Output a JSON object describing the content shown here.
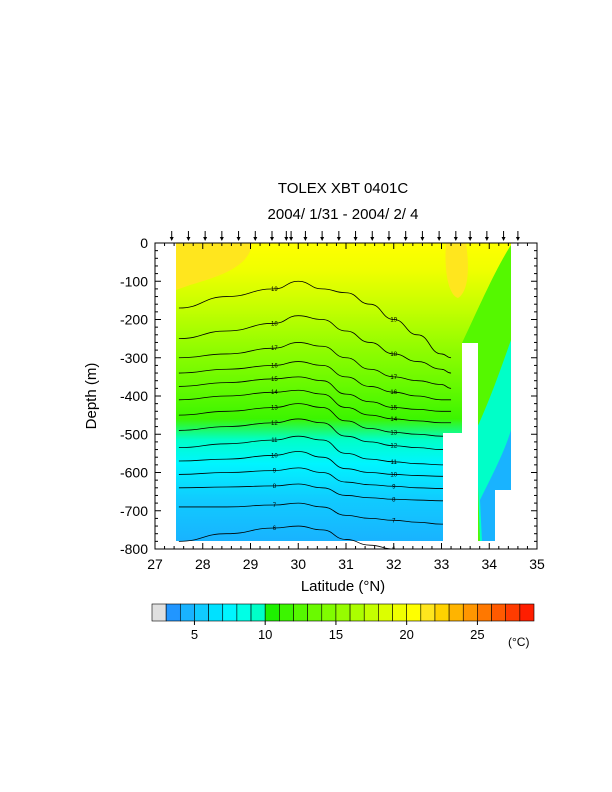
{
  "chart_data": {
    "type": "heatmap",
    "title": "TOLEX XBT 0401C",
    "subtitle": "2004/ 1/31 - 2004/ 2/ 4",
    "xlabel": "Latitude (°N)",
    "ylabel": "Depth (m)",
    "xlim": [
      27,
      35
    ],
    "ylim": [
      -800,
      0
    ],
    "x_ticks": [
      27,
      28,
      29,
      30,
      31,
      32,
      33,
      34,
      35
    ],
    "x_tick_labels": [
      "27",
      "28",
      "29",
      "30",
      "31",
      "32",
      "33",
      "34",
      "35"
    ],
    "y_ticks": [
      0,
      -100,
      -200,
      -300,
      -400,
      -500,
      -600,
      -700,
      -800
    ],
    "y_tick_labels": [
      "0",
      "-100",
      "-200",
      "-300",
      "-400",
      "-500",
      "-600",
      "-700",
      "-800"
    ],
    "station_latitudes": [
      27.35,
      27.7,
      28.05,
      28.4,
      28.75,
      29.1,
      29.45,
      29.75,
      29.85,
      30.15,
      30.5,
      30.85,
      31.2,
      31.55,
      31.9,
      32.25,
      32.6,
      32.95,
      33.3,
      33.6,
      33.95,
      34.3,
      34.6
    ],
    "contour_levels": [
      6,
      7,
      8,
      9,
      10,
      11,
      12,
      13,
      14,
      15,
      16,
      17,
      18,
      19
    ],
    "isotherm_depths": {
      "lat": [
        27.5,
        28.5,
        29.5,
        30.0,
        30.5,
        31.0,
        31.5,
        32.0,
        32.5,
        33.0,
        33.2
      ],
      "t19": [
        -170,
        -140,
        -120,
        -100,
        -120,
        -130,
        -160,
        -200,
        -240,
        -290,
        -300
      ],
      "t18": [
        -250,
        -230,
        -210,
        -190,
        -200,
        -230,
        -260,
        -290,
        -310,
        -330,
        -340
      ],
      "t17": [
        -300,
        -290,
        -275,
        -260,
        -270,
        -300,
        -330,
        -350,
        -360,
        -370,
        -380
      ],
      "t16": [
        -340,
        -330,
        -320,
        -310,
        -320,
        -350,
        -375,
        -390,
        -400,
        -410,
        -410
      ],
      "t15": [
        -375,
        -365,
        -355,
        -350,
        -360,
        -395,
        -415,
        -430,
        -435,
        -440,
        -440
      ],
      "t14": [
        -410,
        -400,
        -390,
        -385,
        -395,
        -430,
        -450,
        -460,
        -465,
        -470,
        -470
      ],
      "t13": [
        -450,
        -440,
        -430,
        -420,
        -430,
        -465,
        -485,
        -495,
        -500,
        -505,
        -505
      ],
      "t12": [
        -490,
        -480,
        -470,
        -460,
        -470,
        -505,
        -520,
        -530,
        -535,
        -540,
        -540
      ],
      "t11": [
        -535,
        -525,
        -515,
        -505,
        -515,
        -550,
        -565,
        -572,
        -577,
        -580,
        -580
      ],
      "t10": [
        -570,
        -565,
        -555,
        -545,
        -560,
        -590,
        -600,
        -605,
        -608,
        -610,
        -610
      ],
      "t9": [
        -605,
        -600,
        -595,
        -588,
        -600,
        -625,
        -632,
        -636,
        -640,
        -642,
        -642
      ],
      "t8": [
        -640,
        -638,
        -635,
        -630,
        -640,
        -660,
        -666,
        -670,
        -672,
        -674,
        -674
      ],
      "t7": [
        -690,
        -690,
        -685,
        -680,
        -690,
        -712,
        -720,
        -725,
        -730,
        -735,
        -735
      ],
      "t6": [
        -780,
        -760,
        -745,
        -740,
        -750,
        -775,
        -790,
        -800,
        -800,
        -800,
        -800
      ]
    },
    "colorbar": {
      "label": "(°C)",
      "tick_values": [
        5,
        10,
        15,
        20,
        25
      ],
      "tick_labels": [
        "5",
        "10",
        "15",
        "20",
        "25"
      ],
      "colors": [
        "#e0e0e0",
        "#2196ff",
        "#19b3ff",
        "#10cbff",
        "#00e1ff",
        "#00f5ff",
        "#00ffe6",
        "#00ffc8",
        "#1ef000",
        "#3cf500",
        "#55f800",
        "#6afa00",
        "#80fc00",
        "#96fd00",
        "#acfe00",
        "#c4ff00",
        "#dcff00",
        "#f0ff00",
        "#ffff00",
        "#ffe61e",
        "#ffd200",
        "#ffb400",
        "#ff9600",
        "#ff7800",
        "#ff5a00",
        "#ff3c00",
        "#ff1e00"
      ]
    }
  }
}
